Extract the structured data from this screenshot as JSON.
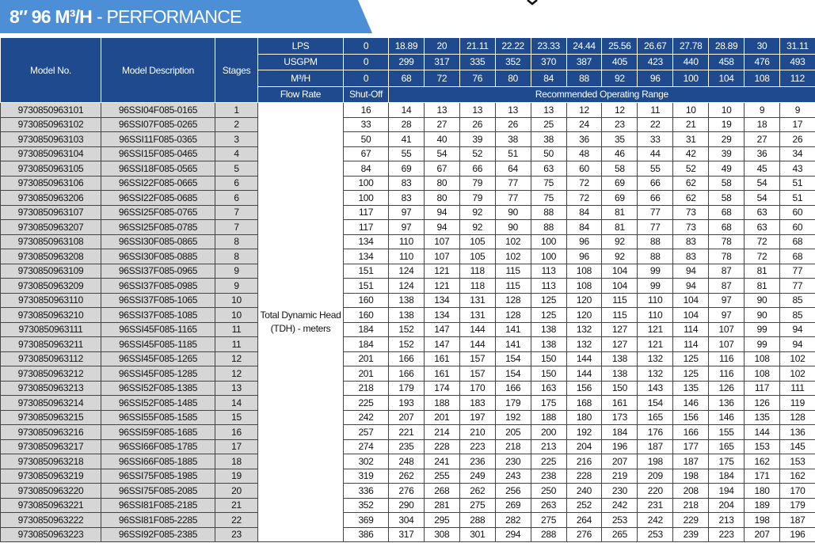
{
  "header": {
    "title_main": "8″ 96 M³/H",
    "title_sub": "- PERFORMANCE"
  },
  "table": {
    "columns": [
      "Model No.",
      "Model Description",
      "Stages"
    ],
    "flow": [
      {
        "label": "LPS",
        "values": [
          0,
          18.89,
          20,
          21.11,
          22.22,
          23.33,
          24.44,
          25.56,
          26.67,
          27.78,
          28.89,
          30,
          31.11
        ]
      },
      {
        "label": "USGPM",
        "values": [
          0,
          299,
          317,
          335,
          352,
          370,
          387,
          405,
          423,
          440,
          458,
          476,
          493
        ]
      },
      {
        "label": "M³/H",
        "values": [
          0,
          68,
          72,
          76,
          80,
          84,
          88,
          92,
          96,
          100,
          104,
          108,
          112
        ]
      }
    ],
    "flow_rate_label": "Flow Rate",
    "shutoff_label": "Shut-Off",
    "range_label": "Recommended Operating Range",
    "tdh_label": "Total Dynamic Head (TDH) - meters",
    "rows": [
      [
        "9730850963101",
        "96SSI04F085-0165",
        1,
        16,
        14,
        13,
        13,
        13,
        13,
        12,
        12,
        11,
        10,
        10,
        9,
        9
      ],
      [
        "9730850963102",
        "96SSI07F085-0265",
        2,
        33,
        28,
        27,
        26,
        26,
        25,
        24,
        23,
        22,
        21,
        19,
        18,
        17
      ],
      [
        "9730850963103",
        "96SSI11F085-0365",
        3,
        50,
        41,
        40,
        39,
        38,
        38,
        36,
        35,
        33,
        31,
        29,
        27,
        26
      ],
      [
        "9730850963104",
        "96SSI15F085-0465",
        4,
        67,
        55,
        54,
        52,
        51,
        50,
        48,
        46,
        44,
        42,
        39,
        36,
        34
      ],
      [
        "9730850963105",
        "96SSI18F085-0565",
        5,
        84,
        69,
        67,
        66,
        64,
        63,
        60,
        58,
        55,
        52,
        49,
        45,
        43
      ],
      [
        "9730850963106",
        "96SSI22F085-0665",
        6,
        100,
        83,
        80,
        79,
        77,
        75,
        72,
        69,
        66,
        62,
        58,
        54,
        51
      ],
      [
        "9730850963206",
        "96SSI22F085-0685",
        6,
        100,
        83,
        80,
        79,
        77,
        75,
        72,
        69,
        66,
        62,
        58,
        54,
        51
      ],
      [
        "9730850963107",
        "96SSI25F085-0765",
        7,
        117,
        97,
        94,
        92,
        90,
        88,
        84,
        81,
        77,
        73,
        68,
        63,
        60
      ],
      [
        "9730850963207",
        "96SSI25F085-0785",
        7,
        117,
        97,
        94,
        92,
        90,
        88,
        84,
        81,
        77,
        73,
        68,
        63,
        60
      ],
      [
        "9730850963108",
        "96SSI30F085-0865",
        8,
        134,
        110,
        107,
        105,
        102,
        100,
        96,
        92,
        88,
        83,
        78,
        72,
        68
      ],
      [
        "9730850963208",
        "96SSI30F085-0885",
        8,
        134,
        110,
        107,
        105,
        102,
        100,
        96,
        92,
        88,
        83,
        78,
        72,
        68
      ],
      [
        "9730850963109",
        "96SSI37F085-0965",
        9,
        151,
        124,
        121,
        118,
        115,
        113,
        108,
        104,
        99,
        94,
        87,
        81,
        77
      ],
      [
        "9730850963209",
        "96SSI37F085-0985",
        9,
        151,
        124,
        121,
        118,
        115,
        113,
        108,
        104,
        99,
        94,
        87,
        81,
        77
      ],
      [
        "9730850963110",
        "96SSI37F085-1065",
        10,
        160,
        138,
        134,
        131,
        128,
        125,
        120,
        115,
        110,
        104,
        97,
        90,
        85
      ],
      [
        "9730850963210",
        "96SSI37F085-1085",
        10,
        160,
        138,
        134,
        131,
        128,
        125,
        120,
        115,
        110,
        104,
        97,
        90,
        85
      ],
      [
        "9730850963111",
        "96SSI45F085-1165",
        11,
        184,
        152,
        147,
        144,
        141,
        138,
        132,
        127,
        121,
        114,
        107,
        99,
        94
      ],
      [
        "9730850963211",
        "96SSI45F085-1185",
        11,
        184,
        152,
        147,
        144,
        141,
        138,
        132,
        127,
        121,
        114,
        107,
        99,
        94
      ],
      [
        "9730850963112",
        "96SSI45F085-1265",
        12,
        201,
        166,
        161,
        157,
        154,
        150,
        144,
        138,
        132,
        125,
        116,
        108,
        102
      ],
      [
        "9730850963212",
        "96SSI45F085-1285",
        12,
        201,
        166,
        161,
        157,
        154,
        150,
        144,
        138,
        132,
        125,
        116,
        108,
        102
      ],
      [
        "9730850963213",
        "96SSI52F085-1385",
        13,
        218,
        179,
        174,
        170,
        166,
        163,
        156,
        150,
        143,
        135,
        126,
        117,
        111
      ],
      [
        "9730850963214",
        "96SSI52F085-1485",
        14,
        225,
        193,
        188,
        183,
        179,
        175,
        168,
        161,
        154,
        146,
        136,
        126,
        119
      ],
      [
        "9730850963215",
        "96SSI55F085-1585",
        15,
        242,
        207,
        201,
        197,
        192,
        188,
        180,
        173,
        165,
        156,
        146,
        135,
        128
      ],
      [
        "9730850963216",
        "96SSI59F085-1685",
        16,
        257,
        221,
        214,
        210,
        205,
        200,
        192,
        184,
        176,
        166,
        155,
        144,
        136
      ],
      [
        "9730850963217",
        "96SSI66F085-1785",
        17,
        274,
        235,
        228,
        223,
        218,
        213,
        204,
        196,
        187,
        177,
        165,
        153,
        145
      ],
      [
        "9730850963218",
        "96SSI66F085-1885",
        18,
        302,
        248,
        241,
        236,
        230,
        225,
        216,
        207,
        198,
        187,
        175,
        162,
        153
      ],
      [
        "9730850963219",
        "96SSI75F085-1985",
        19,
        319,
        262,
        255,
        249,
        243,
        238,
        228,
        219,
        209,
        198,
        184,
        171,
        162
      ],
      [
        "9730850963220",
        "96SSI75F085-2085",
        20,
        336,
        276,
        268,
        262,
        256,
        250,
        240,
        230,
        220,
        208,
        194,
        180,
        170
      ],
      [
        "9730850963221",
        "96SSI81F085-2185",
        21,
        352,
        290,
        281,
        275,
        269,
        263,
        252,
        242,
        231,
        218,
        204,
        189,
        179
      ],
      [
        "9730850963222",
        "96SSI81F085-2285",
        22,
        369,
        304,
        295,
        288,
        282,
        275,
        264,
        253,
        242,
        229,
        213,
        198,
        187
      ],
      [
        "9730850963223",
        "96SSI92F085-2385",
        23,
        386,
        317,
        308,
        301,
        294,
        288,
        276,
        265,
        253,
        239,
        223,
        207,
        196
      ]
    ]
  }
}
